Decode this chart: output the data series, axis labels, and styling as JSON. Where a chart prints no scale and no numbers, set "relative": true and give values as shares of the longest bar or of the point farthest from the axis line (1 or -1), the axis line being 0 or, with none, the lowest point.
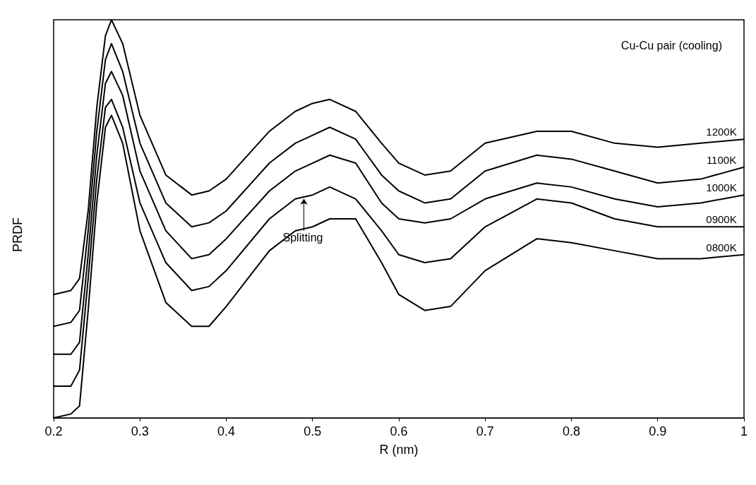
{
  "chart_data": {
    "type": "line",
    "relative": true,
    "xlabel": "R (nm)",
    "ylabel": "PRDF",
    "xlim": [
      0.2,
      1
    ],
    "xticks": [
      0.2,
      0.3,
      0.4,
      0.5,
      0.6,
      0.7,
      0.8,
      0.9,
      1
    ],
    "grid": false,
    "legend": false,
    "marker": "none",
    "line_style": "solid",
    "x": [
      0.2,
      0.22,
      0.23,
      0.24,
      0.25,
      0.26,
      0.267,
      0.28,
      0.3,
      0.33,
      0.36,
      0.38,
      0.4,
      0.45,
      0.48,
      0.5,
      0.52,
      0.55,
      0.58,
      0.6,
      0.63,
      0.66,
      0.7,
      0.76,
      0.8,
      0.85,
      0.9,
      0.95,
      1.0
    ],
    "series": [
      {
        "name": "1200K",
        "color": "#000000",
        "values": [
          0.31,
          0.32,
          0.35,
          0.52,
          0.78,
          0.96,
          1.0,
          0.94,
          0.76,
          0.61,
          0.56,
          0.57,
          0.6,
          0.72,
          0.77,
          0.79,
          0.8,
          0.77,
          0.69,
          0.64,
          0.61,
          0.62,
          0.69,
          0.72,
          0.72,
          0.69,
          0.68,
          0.69,
          0.7
        ]
      },
      {
        "name": "1100K",
        "color": "#000000",
        "values": [
          0.23,
          0.24,
          0.27,
          0.47,
          0.72,
          0.9,
          0.94,
          0.87,
          0.69,
          0.54,
          0.48,
          0.49,
          0.52,
          0.64,
          0.69,
          0.71,
          0.73,
          0.7,
          0.61,
          0.57,
          0.54,
          0.55,
          0.62,
          0.66,
          0.65,
          0.62,
          0.59,
          0.6,
          0.63
        ]
      },
      {
        "name": "1000K",
        "color": "#000000",
        "values": [
          0.16,
          0.16,
          0.19,
          0.41,
          0.66,
          0.84,
          0.87,
          0.81,
          0.62,
          0.47,
          0.4,
          0.41,
          0.45,
          0.57,
          0.62,
          0.64,
          0.66,
          0.64,
          0.54,
          0.5,
          0.49,
          0.5,
          0.55,
          0.59,
          0.58,
          0.55,
          0.53,
          0.54,
          0.56
        ]
      },
      {
        "name": "0900K",
        "color": "#000000",
        "values": [
          0.08,
          0.08,
          0.12,
          0.35,
          0.6,
          0.78,
          0.8,
          0.73,
          0.54,
          0.39,
          0.32,
          0.33,
          0.37,
          0.5,
          0.55,
          0.56,
          0.58,
          0.55,
          0.47,
          0.41,
          0.39,
          0.4,
          0.48,
          0.55,
          0.54,
          0.5,
          0.48,
          0.48,
          0.48
        ]
      },
      {
        "name": "0800K",
        "color": "#000000",
        "values": [
          0.0,
          0.01,
          0.03,
          0.27,
          0.54,
          0.73,
          0.76,
          0.69,
          0.47,
          0.29,
          0.23,
          0.23,
          0.28,
          0.42,
          0.47,
          0.48,
          0.5,
          0.5,
          0.39,
          0.31,
          0.27,
          0.28,
          0.37,
          0.45,
          0.44,
          0.42,
          0.4,
          0.4,
          0.41
        ]
      }
    ],
    "annotations": [
      "Cu-Cu pair (cooling)",
      {
        "text": "Splitting",
        "x": 0.49,
        "y": 0.55
      }
    ]
  }
}
